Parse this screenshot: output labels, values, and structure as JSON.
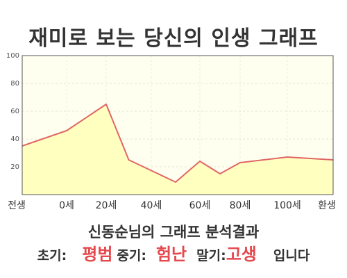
{
  "title": "재미로 보는 당신의 인생 그래프",
  "subtitle": "신동순님의 그래프 분석결과",
  "summary": {
    "early_label": "초기:",
    "early_value": "평범",
    "middle_label": "중기:",
    "middle_value": "험난",
    "late_label": "말기:",
    "late_value": "고생",
    "suffix": "입니다"
  },
  "colors": {
    "line": "#e06666",
    "area": "#ffffc0",
    "plot_bg": "#fffff0",
    "highlight": "#e5484d"
  },
  "chart_data": {
    "type": "area",
    "title": "재미로 보는 당신의 인생 그래프",
    "ylim": [
      0,
      100
    ],
    "yticks": [
      20,
      40,
      60,
      80,
      100
    ],
    "x_tick_labels": [
      "전생",
      "0세",
      "20세",
      "40세",
      "60세",
      "80세",
      "100세",
      "환생"
    ],
    "grid": true,
    "series": [
      {
        "points": [
          {
            "x": "전생",
            "y": 35
          },
          {
            "x": "0세",
            "y": 46
          },
          {
            "x": "20세",
            "y": 65
          },
          {
            "x": "30세",
            "y": 25
          },
          {
            "x": "50세",
            "y": 9
          },
          {
            "x": "60세",
            "y": 24
          },
          {
            "x": "70세",
            "y": 15
          },
          {
            "x": "80세",
            "y": 23
          },
          {
            "x": "100세",
            "y": 27
          },
          {
            "x": "환생",
            "y": 25
          }
        ]
      }
    ]
  }
}
